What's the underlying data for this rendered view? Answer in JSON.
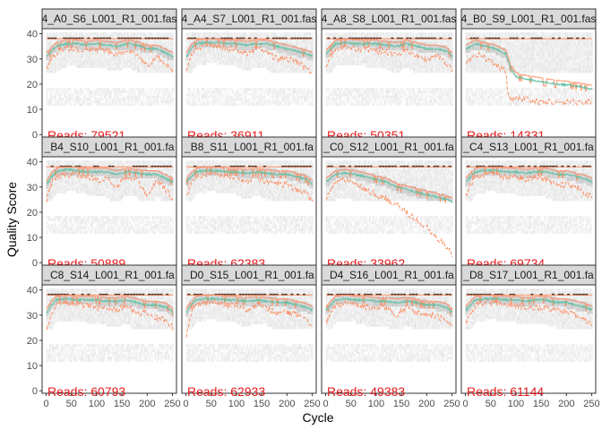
{
  "chart_data": {
    "type": "heatmap",
    "xlabel": "Cycle",
    "ylabel": "Quality Score",
    "xlim": [
      -8,
      258
    ],
    "ylim": [
      -1,
      42
    ],
    "x_ticks": [
      "0",
      "50",
      "100",
      "150",
      "200",
      "250"
    ],
    "y_ticks": [
      "0",
      "10",
      "20",
      "30",
      "40"
    ],
    "colors": {
      "mean": "#66c2a5",
      "quantiles": "#fc8d62",
      "heat_light": "#eeeeee",
      "heat_mid": "#cfcfcf",
      "heat_dark": "#1a1a1a",
      "reads": "#e41a1c",
      "strip_fill": "#d9d9d9"
    },
    "reads_prefix": "Reads: ",
    "panels": [
      {
        "title": "4_A0_S6_L001_R1_001.fas",
        "reads": "79521",
        "mean": {
          "x": [
            1,
            10,
            20,
            40,
            60,
            80,
            100,
            120,
            140,
            160,
            180,
            200,
            220,
            240,
            251
          ],
          "y": [
            31,
            33,
            35,
            36,
            36,
            35.5,
            36,
            35.5,
            35,
            36,
            35.5,
            34,
            34,
            32,
            31
          ]
        },
        "lower": {
          "x": [
            1,
            10,
            20,
            40,
            60,
            80,
            100,
            120,
            140,
            160,
            180,
            200,
            220,
            240,
            251
          ],
          "y": [
            26,
            30,
            32,
            34,
            34,
            33,
            34,
            33,
            32,
            34,
            32,
            27,
            31,
            27,
            25
          ]
        }
      },
      {
        "title": "4_A4_S7_L001_R1_001.fas",
        "reads": "36911",
        "mean": {
          "x": [
            1,
            10,
            20,
            40,
            60,
            80,
            100,
            120,
            140,
            160,
            180,
            200,
            220,
            240,
            251
          ],
          "y": [
            31,
            34,
            36,
            36.5,
            36.5,
            36,
            36,
            35.5,
            36,
            36,
            35,
            34,
            33,
            32,
            31
          ]
        },
        "lower": {
          "x": [
            1,
            10,
            20,
            40,
            60,
            80,
            100,
            120,
            140,
            160,
            180,
            200,
            220,
            240,
            251
          ],
          "y": [
            26,
            31,
            34,
            35,
            35,
            34,
            34,
            32,
            34,
            33,
            30,
            30,
            29,
            26,
            25
          ]
        }
      },
      {
        "title": "4_A8_S8_L001_R1_001.fas",
        "reads": "50351",
        "mean": {
          "x": [
            1,
            10,
            20,
            40,
            60,
            80,
            100,
            120,
            140,
            160,
            180,
            200,
            220,
            240,
            251
          ],
          "y": [
            32,
            34,
            36,
            36.5,
            36,
            36,
            36,
            35.5,
            35,
            36,
            35,
            34,
            34,
            33,
            31
          ]
        },
        "lower": {
          "x": [
            1,
            10,
            20,
            40,
            60,
            80,
            100,
            120,
            140,
            160,
            180,
            200,
            220,
            240,
            251
          ],
          "y": [
            27,
            31,
            34,
            35,
            34,
            34,
            33,
            33,
            31,
            34,
            31,
            30,
            31,
            28,
            26
          ]
        }
      },
      {
        "title": "4_B0_S9_L001_R1_001.fas",
        "reads": "14331",
        "mean": {
          "x": [
            1,
            20,
            40,
            60,
            80,
            90,
            100,
            120,
            150,
            180,
            210,
            240,
            251
          ],
          "y": [
            34,
            36,
            35,
            34,
            32,
            26,
            23,
            22,
            21,
            20,
            19.5,
            18.5,
            18
          ]
        },
        "lower": {
          "x": [
            1,
            20,
            40,
            60,
            80,
            85,
            90,
            120,
            150,
            180,
            210,
            240,
            251
          ],
          "y": [
            28,
            32,
            30,
            28,
            25,
            15,
            14,
            14,
            13,
            13,
            13,
            13,
            13
          ]
        }
      },
      {
        "title": "_B4_S10_L001_R1_001.fa",
        "reads": "50889",
        "mean": {
          "x": [
            1,
            10,
            20,
            40,
            60,
            80,
            100,
            120,
            140,
            160,
            180,
            200,
            220,
            240,
            251
          ],
          "y": [
            31,
            34,
            36,
            37,
            36.5,
            36,
            36,
            36,
            35,
            36,
            35.5,
            35,
            35,
            33,
            32
          ]
        },
        "lower": {
          "x": [
            1,
            10,
            20,
            40,
            60,
            80,
            100,
            120,
            140,
            160,
            180,
            200,
            220,
            240,
            251
          ],
          "y": [
            25,
            31,
            34,
            35,
            35,
            34,
            33,
            33,
            30,
            34,
            33,
            27,
            33,
            28,
            25
          ]
        }
      },
      {
        "title": "_B8_S11_L001_R1_001.fa",
        "reads": "62383",
        "mean": {
          "x": [
            1,
            10,
            20,
            40,
            60,
            80,
            100,
            120,
            140,
            160,
            180,
            200,
            220,
            240,
            251
          ],
          "y": [
            32,
            34,
            36,
            36.5,
            36.5,
            36,
            36,
            35.5,
            36,
            35.5,
            35,
            35,
            34,
            33,
            31
          ]
        },
        "lower": {
          "x": [
            1,
            10,
            20,
            40,
            60,
            80,
            100,
            120,
            140,
            160,
            180,
            200,
            220,
            240,
            251
          ],
          "y": [
            27,
            31,
            34,
            35,
            35,
            34,
            34,
            32,
            34,
            32,
            31,
            31,
            29,
            27,
            24
          ]
        }
      },
      {
        "title": "_C0_S12_L001_R1_001.fa",
        "reads": "33962",
        "mean": {
          "x": [
            1,
            20,
            40,
            60,
            80,
            100,
            120,
            140,
            160,
            180,
            200,
            220,
            240,
            251
          ],
          "y": [
            32,
            35,
            35.5,
            35,
            34,
            33,
            32,
            30,
            29,
            28,
            27,
            26,
            25,
            24
          ]
        },
        "lower": {
          "x": [
            1,
            20,
            40,
            60,
            80,
            100,
            120,
            140,
            160,
            180,
            200,
            220,
            240,
            251
          ],
          "y": [
            26,
            32,
            33,
            31,
            29,
            27,
            25,
            23,
            20,
            17,
            14,
            10,
            6,
            3
          ]
        }
      },
      {
        "title": "_C4_S13_L001_R1_001.fa",
        "reads": "69734",
        "mean": {
          "x": [
            1,
            10,
            20,
            40,
            60,
            80,
            100,
            120,
            140,
            160,
            180,
            200,
            220,
            240,
            251
          ],
          "y": [
            32,
            34,
            36,
            36.5,
            36.5,
            36,
            36,
            35.5,
            36,
            36,
            35,
            35,
            34,
            33,
            32
          ]
        },
        "lower": {
          "x": [
            1,
            10,
            20,
            40,
            60,
            80,
            100,
            120,
            140,
            160,
            180,
            200,
            220,
            240,
            251
          ],
          "y": [
            27,
            31,
            34,
            35,
            35,
            34,
            34,
            33,
            34,
            33,
            31,
            31,
            30,
            27,
            26
          ]
        }
      },
      {
        "title": "_C8_S14_L001_R1_001.fa",
        "reads": "60793",
        "mean": {
          "x": [
            1,
            10,
            20,
            40,
            60,
            80,
            100,
            120,
            140,
            160,
            180,
            200,
            220,
            240,
            251
          ],
          "y": [
            31,
            34,
            36,
            36.5,
            36,
            36,
            36,
            35.5,
            35.5,
            36,
            35,
            34,
            34,
            33,
            31
          ]
        },
        "lower": {
          "x": [
            1,
            10,
            20,
            40,
            60,
            80,
            100,
            120,
            140,
            160,
            180,
            200,
            220,
            240,
            251
          ],
          "y": [
            24,
            31,
            34,
            35,
            34,
            34,
            33,
            33,
            32,
            34,
            30,
            31,
            29,
            28,
            25
          ]
        }
      },
      {
        "title": "_D0_S15_L001_R1_001.fa",
        "reads": "62933",
        "mean": {
          "x": [
            1,
            10,
            20,
            40,
            60,
            80,
            100,
            120,
            140,
            160,
            180,
            200,
            220,
            240,
            251
          ],
          "y": [
            31,
            34,
            36,
            36.5,
            36.5,
            36,
            36,
            35.5,
            36,
            35.5,
            35,
            35,
            34,
            33,
            32
          ]
        },
        "lower": {
          "x": [
            1,
            10,
            20,
            40,
            60,
            80,
            100,
            120,
            140,
            160,
            180,
            200,
            220,
            240,
            251
          ],
          "y": [
            22,
            31,
            34,
            35,
            35,
            34,
            34,
            32,
            34,
            33,
            31,
            31,
            30,
            28,
            26
          ]
        }
      },
      {
        "title": "_D4_S16_L001_R1_001.fa",
        "reads": "49383",
        "mean": {
          "x": [
            1,
            10,
            20,
            40,
            60,
            80,
            100,
            120,
            140,
            160,
            180,
            200,
            220,
            240,
            251
          ],
          "y": [
            32,
            34,
            36,
            36.5,
            36,
            36,
            35.5,
            35.5,
            35,
            35.5,
            35,
            34,
            34,
            33,
            31
          ]
        },
        "lower": {
          "x": [
            1,
            10,
            20,
            40,
            60,
            80,
            100,
            120,
            140,
            160,
            180,
            200,
            220,
            240,
            251
          ],
          "y": [
            27,
            31,
            34,
            35,
            34,
            33,
            32,
            33,
            30,
            33,
            31,
            30,
            30,
            27,
            25
          ]
        }
      },
      {
        "title": "_D8_S17_L001_R1_001.fa",
        "reads": "61144",
        "mean": {
          "x": [
            1,
            10,
            20,
            40,
            60,
            80,
            100,
            120,
            140,
            160,
            180,
            200,
            220,
            240,
            251
          ],
          "y": [
            32,
            34,
            36,
            36.5,
            36.5,
            36,
            36,
            35.5,
            36,
            36,
            35,
            35,
            34,
            33,
            32
          ]
        },
        "lower": {
          "x": [
            1,
            10,
            20,
            40,
            60,
            80,
            100,
            120,
            140,
            160,
            180,
            200,
            220,
            240,
            251
          ],
          "y": [
            27,
            31,
            34,
            35,
            35,
            34,
            34,
            33,
            33,
            33,
            32,
            31,
            30,
            28,
            26
          ]
        }
      }
    ]
  }
}
